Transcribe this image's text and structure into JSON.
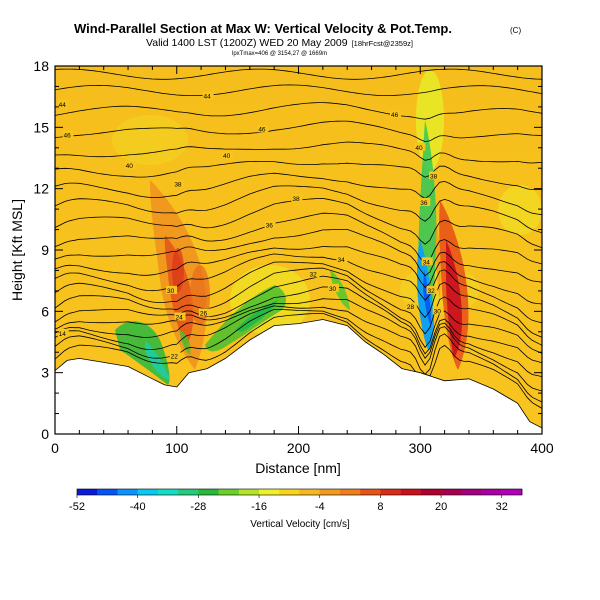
{
  "chart_data": {
    "type": "heatmap",
    "title": "Wind-Parallel Section at Max W: Vertical Velocity & Pot.Temp.",
    "copyright": "(C)",
    "subtitle": "Valid 1400 LST (1200Z) WED 20 May 2009",
    "forecast_note": "[18hrFcst@2359z]",
    "location_line": "lpxTmax=406 @ 3154,27 @ 1669m",
    "xlabel": "Distance [nm]",
    "ylabel": "Height [Kft MSL]",
    "xlim": [
      0,
      400
    ],
    "ylim": [
      0,
      18
    ],
    "x_ticks": [
      "0",
      "100",
      "200",
      "300",
      "400"
    ],
    "y_ticks": [
      "0",
      "3",
      "6",
      "9",
      "12",
      "15",
      "18"
    ],
    "x_tick_values": [
      0,
      100,
      200,
      300,
      400
    ],
    "y_tick_values": [
      0,
      3,
      6,
      9,
      12,
      15,
      18
    ],
    "colorbar": {
      "label": "Vertical Velocity [cm/s]",
      "ticks": [
        "-52",
        "-40",
        "-28",
        "-16",
        "-4",
        "8",
        "20",
        "32"
      ],
      "min": -52,
      "max": 36,
      "step": 4,
      "colors": [
        "#0a1ad6",
        "#0555f5",
        "#0a93ff",
        "#0ac8f0",
        "#16dcc4",
        "#22cc7a",
        "#2ab83a",
        "#6ad02a",
        "#b4e42a",
        "#eef02a",
        "#f8d41e",
        "#f6b81e",
        "#f29a1e",
        "#ee7d1e",
        "#e85418",
        "#d82c18",
        "#c8101e",
        "#b0002e",
        "#a8004e",
        "#a20080",
        "#a800a2",
        "#b000b8"
      ]
    },
    "terrain_kft": [
      [
        0,
        3.1
      ],
      [
        10,
        3.6
      ],
      [
        20,
        3.7
      ],
      [
        40,
        3.5
      ],
      [
        60,
        3.3
      ],
      [
        80,
        2.7
      ],
      [
        90,
        2.4
      ],
      [
        100,
        2.3
      ],
      [
        110,
        3.0
      ],
      [
        125,
        3.2
      ],
      [
        140,
        3.7
      ],
      [
        160,
        4.6
      ],
      [
        180,
        5.3
      ],
      [
        200,
        5.4
      ],
      [
        220,
        5.6
      ],
      [
        240,
        5.3
      ],
      [
        255,
        4.5
      ],
      [
        270,
        3.9
      ],
      [
        285,
        3.2
      ],
      [
        300,
        3.0
      ],
      [
        310,
        2.8
      ],
      [
        320,
        2.6
      ],
      [
        340,
        2.7
      ],
      [
        360,
        2.2
      ],
      [
        380,
        1.5
      ],
      [
        390,
        0.6
      ],
      [
        400,
        0.3
      ]
    ],
    "contour_labels": [
      {
        "text": "44",
        "x": 3,
        "y": 16.1
      },
      {
        "text": "44",
        "x": 122,
        "y": 16.5
      },
      {
        "text": "46",
        "x": 7,
        "y": 14.6
      },
      {
        "text": "46",
        "x": 167,
        "y": 14.9
      },
      {
        "text": "46",
        "x": 276,
        "y": 15.6
      },
      {
        "text": "40",
        "x": 58,
        "y": 13.1
      },
      {
        "text": "40",
        "x": 138,
        "y": 13.6
      },
      {
        "text": "40",
        "x": 296,
        "y": 14.0
      },
      {
        "text": "38",
        "x": 98,
        "y": 12.2
      },
      {
        "text": "38",
        "x": 195,
        "y": 11.5
      },
      {
        "text": "38",
        "x": 308,
        "y": 12.6
      },
      {
        "text": "36",
        "x": 173,
        "y": 10.2
      },
      {
        "text": "36",
        "x": 300,
        "y": 11.3
      },
      {
        "text": "34",
        "x": 232,
        "y": 8.5
      },
      {
        "text": "34",
        "x": 302,
        "y": 8.4
      },
      {
        "text": "32",
        "x": 209,
        "y": 7.8
      },
      {
        "text": "32",
        "x": 306,
        "y": 7.0
      },
      {
        "text": "30",
        "x": 225,
        "y": 7.1
      },
      {
        "text": "30",
        "x": 311,
        "y": 6.0
      },
      {
        "text": "30",
        "x": 92,
        "y": 7.0
      },
      {
        "text": "28",
        "x": 289,
        "y": 6.2
      },
      {
        "text": "26",
        "x": 119,
        "y": 5.9
      },
      {
        "text": "24",
        "x": 99,
        "y": 5.7
      },
      {
        "text": "22",
        "x": 95,
        "y": 3.8
      },
      {
        "text": "14",
        "x": 3,
        "y": 4.9
      }
    ]
  }
}
